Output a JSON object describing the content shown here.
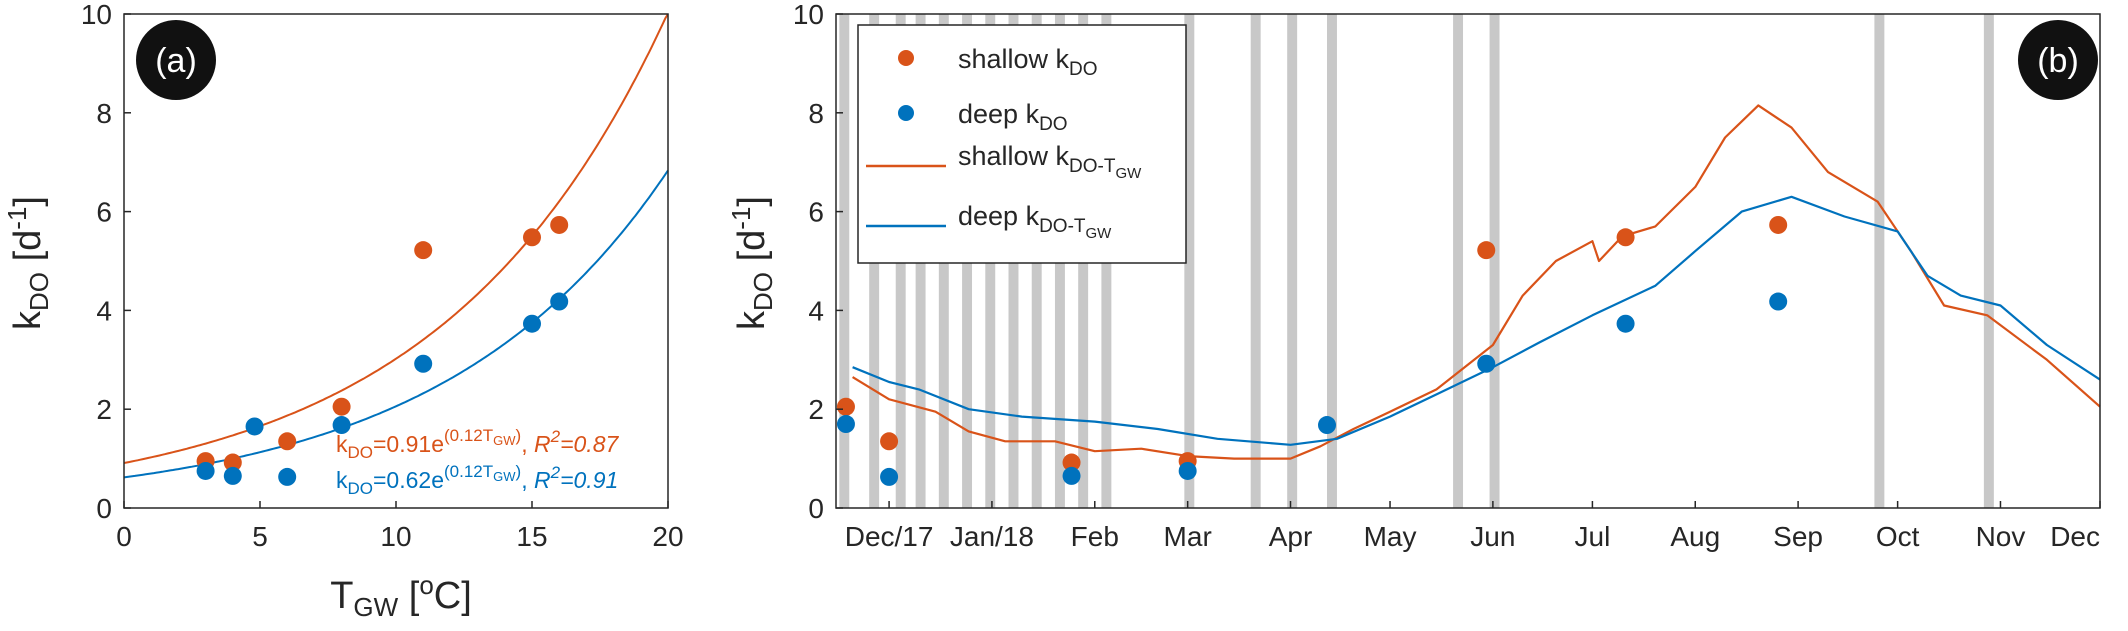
{
  "colors": {
    "shallow": "#D95319",
    "deep": "#0072BD",
    "band": "#C8C8C8",
    "axis": "#262626"
  },
  "chart_data": [
    {
      "type": "scatter",
      "panel_label": "(a)",
      "xlabel_main": "T",
      "xlabel_sub": "GW",
      "xlabel_unit_open": " [",
      "xlabel_unit_sup": "o",
      "xlabel_unit_close": "C]",
      "ylabel_main": "k",
      "ylabel_sub": "DO",
      "ylabel_unit_open": " [d",
      "ylabel_unit_sup": "-1",
      "ylabel_unit_close": "]",
      "xlim": [
        0,
        20
      ],
      "ylim": [
        0,
        10
      ],
      "xticks": [
        "0",
        "5",
        "10",
        "15",
        "20"
      ],
      "yticks": [
        "0",
        "2",
        "4",
        "6",
        "8",
        "10"
      ],
      "grid": false,
      "series": [
        {
          "name": "shallow",
          "type": "scatter",
          "points": [
            [
              3,
              0.95
            ],
            [
              4,
              0.92
            ],
            [
              6,
              1.35
            ],
            [
              8,
              2.05
            ],
            [
              11,
              5.22
            ],
            [
              15,
              5.48
            ],
            [
              16,
              5.73
            ]
          ]
        },
        {
          "name": "deep",
          "type": "scatter",
          "points": [
            [
              3,
              0.75
            ],
            [
              4,
              0.65
            ],
            [
              4.8,
              1.65
            ],
            [
              6,
              0.63
            ],
            [
              8,
              1.68
            ],
            [
              11,
              2.92
            ],
            [
              15,
              3.73
            ],
            [
              16,
              4.18
            ]
          ]
        },
        {
          "name": "shallow fit",
          "type": "line",
          "a": 0.91,
          "b": 0.12
        },
        {
          "name": "deep fit",
          "type": "line",
          "a": 0.62,
          "b": 0.12
        }
      ],
      "annotations": [
        {
          "color": "shallow",
          "p1": "k",
          "s1": "DO",
          "p2": "=0.91e",
          "sup1": "(0.12T",
          "ssub": "GW",
          "sup2": ")",
          "p3": ", ",
          "r2": "R",
          "r2sup": "2",
          "r2val": "=0.87"
        },
        {
          "color": "deep",
          "p1": "k",
          "s1": "DO",
          "p2": "=0.62e",
          "sup1": "(0.12T",
          "ssub": "GW",
          "sup2": ")",
          "p3": ", ",
          "r2": "R",
          "r2sup": "2",
          "r2val": "=0.91"
        }
      ]
    },
    {
      "type": "line",
      "panel_label": "(b)",
      "ylabel_main": "k",
      "ylabel_sub": "DO",
      "ylabel_unit_open": " [d",
      "ylabel_unit_sup": "-1",
      "ylabel_unit_close": "]",
      "xlim": [
        "2017-11-15",
        "2018-12-01"
      ],
      "ylim": [
        0,
        10
      ],
      "yticks": [
        "0",
        "2",
        "4",
        "6",
        "8",
        "10"
      ],
      "xticks": [
        {
          "date": "2017-12-01",
          "label": "Dec/17"
        },
        {
          "date": "2018-01-01",
          "label": "Jan/18"
        },
        {
          "date": "2018-02-01",
          "label": "Feb"
        },
        {
          "date": "2018-03-01",
          "label": "Mar"
        },
        {
          "date": "2018-04-01",
          "label": "Apr"
        },
        {
          "date": "2018-05-01",
          "label": "May"
        },
        {
          "date": "2018-06-01",
          "label": "Jun"
        },
        {
          "date": "2018-07-01",
          "label": "Jul"
        },
        {
          "date": "2018-08-01",
          "label": "Aug"
        },
        {
          "date": "2018-09-01",
          "label": "Sep"
        },
        {
          "date": "2018-10-01",
          "label": "Oct"
        },
        {
          "date": "2018-11-01",
          "label": "Nov"
        },
        {
          "date": "2018-12-01",
          "label": "Dec"
        }
      ],
      "grid": false,
      "shaded_periods": [
        [
          "2017-11-16",
          "2017-11-19"
        ],
        [
          "2017-11-25",
          "2017-11-28"
        ],
        [
          "2017-12-03",
          "2017-12-06"
        ],
        [
          "2017-12-09",
          "2017-12-12"
        ],
        [
          "2017-12-16",
          "2017-12-19"
        ],
        [
          "2017-12-23",
          "2017-12-26"
        ],
        [
          "2017-12-30",
          "2018-01-02"
        ],
        [
          "2018-01-06",
          "2018-01-09"
        ],
        [
          "2018-01-13",
          "2018-01-16"
        ],
        [
          "2018-01-20",
          "2018-01-23"
        ],
        [
          "2018-01-27",
          "2018-01-30"
        ],
        [
          "2018-02-03",
          "2018-02-06"
        ],
        [
          "2018-02-28",
          "2018-03-03"
        ],
        [
          "2018-03-20",
          "2018-03-23"
        ],
        [
          "2018-03-31",
          "2018-04-03"
        ],
        [
          "2018-04-12",
          "2018-04-15"
        ],
        [
          "2018-05-20",
          "2018-05-23"
        ],
        [
          "2018-05-31",
          "2018-06-03"
        ],
        [
          "2018-09-24",
          "2018-09-27"
        ],
        [
          "2018-10-27",
          "2018-10-30"
        ]
      ],
      "legend": {
        "location": "top-left",
        "entries": [
          {
            "series": "shallow",
            "style": "marker",
            "main": "shallow k",
            "sub": "DO",
            "subsub": ""
          },
          {
            "series": "deep",
            "style": "marker",
            "main": "deep k",
            "sub": "DO",
            "subsub": ""
          },
          {
            "series": "shallow",
            "style": "line",
            "main": "shallow k",
            "sub": "DO-T",
            "subsub": "GW"
          },
          {
            "series": "deep",
            "style": "line",
            "main": "deep k",
            "sub": "DO-T",
            "subsub": "GW"
          }
        ]
      },
      "series": [
        {
          "name": "shallow kDO",
          "type": "scatter",
          "points": [
            [
              "2017-11-18",
              2.05
            ],
            [
              "2017-12-01",
              1.35
            ],
            [
              "2018-01-25",
              0.92
            ],
            [
              "2018-03-01",
              0.95
            ],
            [
              "2018-05-30",
              5.22
            ],
            [
              "2018-07-11",
              5.48
            ],
            [
              "2018-08-26",
              5.73
            ]
          ]
        },
        {
          "name": "deep kDO",
          "type": "scatter",
          "points": [
            [
              "2017-11-18",
              1.7
            ],
            [
              "2017-12-01",
              0.63
            ],
            [
              "2018-01-25",
              0.65
            ],
            [
              "2018-03-01",
              0.75
            ],
            [
              "2018-04-12",
              1.68
            ],
            [
              "2018-05-30",
              2.92
            ],
            [
              "2018-07-11",
              3.73
            ],
            [
              "2018-08-26",
              4.18
            ]
          ]
        },
        {
          "name": "shallow kDO-TGW",
          "type": "line",
          "points": [
            [
              "2017-11-20",
              2.65
            ],
            [
              "2017-12-01",
              2.2
            ],
            [
              "2017-12-15",
              1.95
            ],
            [
              "2017-12-25",
              1.55
            ],
            [
              "2018-01-05",
              1.35
            ],
            [
              "2018-01-20",
              1.35
            ],
            [
              "2018-02-01",
              1.15
            ],
            [
              "2018-02-15",
              1.2
            ],
            [
              "2018-03-01",
              1.05
            ],
            [
              "2018-03-15",
              1.0
            ],
            [
              "2018-04-01",
              1.0
            ],
            [
              "2018-04-10",
              1.25
            ],
            [
              "2018-04-20",
              1.6
            ],
            [
              "2018-05-01",
              1.95
            ],
            [
              "2018-05-15",
              2.4
            ],
            [
              "2018-06-01",
              3.3
            ],
            [
              "2018-06-10",
              4.3
            ],
            [
              "2018-06-20",
              5.0
            ],
            [
              "2018-07-01",
              5.4
            ],
            [
              "2018-07-03",
              5.0
            ],
            [
              "2018-07-10",
              5.5
            ],
            [
              "2018-07-20",
              5.7
            ],
            [
              "2018-08-01",
              6.5
            ],
            [
              "2018-08-10",
              7.5
            ],
            [
              "2018-08-20",
              8.15
            ],
            [
              "2018-08-30",
              7.7
            ],
            [
              "2018-09-10",
              6.8
            ],
            [
              "2018-09-25",
              6.2
            ],
            [
              "2018-10-05",
              5.2
            ],
            [
              "2018-10-15",
              4.1
            ],
            [
              "2018-10-28",
              3.9
            ],
            [
              "2018-11-15",
              3.0
            ],
            [
              "2018-12-01",
              2.05
            ]
          ]
        },
        {
          "name": "deep kDO-TGW",
          "type": "line",
          "points": [
            [
              "2017-11-20",
              2.85
            ],
            [
              "2017-12-01",
              2.55
            ],
            [
              "2017-12-10",
              2.4
            ],
            [
              "2017-12-25",
              2.0
            ],
            [
              "2018-01-10",
              1.85
            ],
            [
              "2018-02-01",
              1.75
            ],
            [
              "2018-02-20",
              1.6
            ],
            [
              "2018-03-10",
              1.4
            ],
            [
              "2018-04-01",
              1.28
            ],
            [
              "2018-04-15",
              1.4
            ],
            [
              "2018-05-01",
              1.85
            ],
            [
              "2018-05-15",
              2.3
            ],
            [
              "2018-06-01",
              2.85
            ],
            [
              "2018-06-15",
              3.35
            ],
            [
              "2018-07-01",
              3.9
            ],
            [
              "2018-07-20",
              4.5
            ],
            [
              "2018-08-01",
              5.2
            ],
            [
              "2018-08-15",
              6.0
            ],
            [
              "2018-08-30",
              6.3
            ],
            [
              "2018-09-15",
              5.9
            ],
            [
              "2018-10-01",
              5.6
            ],
            [
              "2018-10-10",
              4.7
            ],
            [
              "2018-10-20",
              4.3
            ],
            [
              "2018-11-01",
              4.1
            ],
            [
              "2018-11-15",
              3.3
            ],
            [
              "2018-12-01",
              2.6
            ]
          ]
        }
      ]
    }
  ]
}
